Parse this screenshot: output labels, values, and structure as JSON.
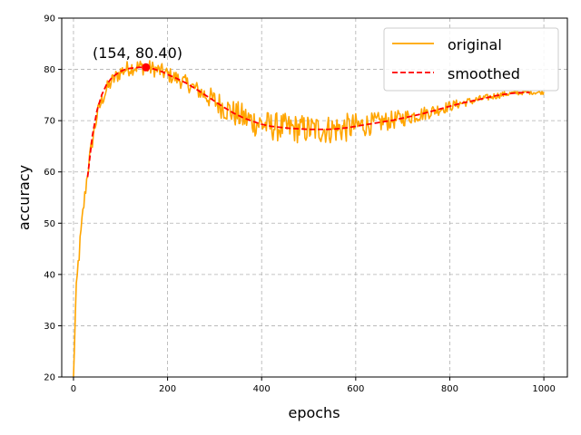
{
  "chart_data": {
    "type": "line",
    "xlabel": "epochs",
    "ylabel": "accuracy",
    "xlim": [
      -25,
      1050
    ],
    "ylim": [
      20,
      90
    ],
    "xticks": [
      0,
      200,
      400,
      600,
      800,
      1000
    ],
    "yticks": [
      20,
      30,
      40,
      50,
      60,
      70,
      80,
      90
    ],
    "grid": true,
    "legend_position": "top-right",
    "series": [
      {
        "name": "original",
        "color": "#ffa500",
        "style": "solid",
        "x": [
          0,
          5,
          10,
          20,
          30,
          40,
          50,
          60,
          70,
          80,
          90,
          100,
          110,
          120,
          130,
          140,
          150,
          160,
          170,
          180,
          190,
          200,
          220,
          240,
          260,
          280,
          300,
          320,
          340,
          360,
          380,
          400,
          420,
          440,
          460,
          480,
          500,
          520,
          540,
          560,
          580,
          600,
          620,
          640,
          660,
          680,
          700,
          720,
          740,
          760,
          780,
          800,
          820,
          840,
          860,
          880,
          900,
          920,
          940,
          960,
          980,
          1000
        ],
        "y": [
          20,
          35,
          42,
          52,
          60,
          66,
          71,
          74,
          76,
          77.5,
          78.5,
          79.5,
          80,
          80.3,
          80.5,
          80.5,
          80.4,
          80.3,
          80.1,
          79.8,
          79.5,
          79.0,
          78.2,
          77.3,
          76.2,
          75.0,
          73.8,
          72.6,
          71.5,
          70.6,
          69.9,
          69.3,
          68.9,
          68.7,
          68.5,
          68.4,
          68.3,
          68.3,
          68.3,
          68.4,
          68.6,
          68.9,
          69.2,
          69.5,
          69.8,
          70.1,
          70.5,
          70.9,
          71.3,
          71.8,
          72.3,
          72.8,
          73.3,
          73.7,
          74.1,
          74.5,
          74.9,
          75.2,
          75.4,
          75.5,
          75.5,
          75.5
        ],
        "noise": [
          0,
          1.5,
          1.5,
          1.2,
          1.2,
          1.2,
          1.2,
          1.2,
          1.2,
          1.2,
          1.2,
          1.2,
          1.2,
          1.2,
          1.2,
          1.2,
          1.2,
          1.2,
          1.2,
          1.2,
          1.2,
          1.2,
          1.2,
          1.2,
          1.2,
          1.5,
          1.8,
          2.0,
          2.0,
          2.2,
          2.2,
          2.2,
          2.2,
          2.2,
          2.2,
          2.2,
          2.2,
          2.2,
          2.2,
          2.2,
          2.2,
          2.0,
          1.8,
          1.6,
          1.5,
          1.4,
          1.3,
          1.2,
          1.1,
          1.0,
          0.9,
          0.8,
          0.7,
          0.6,
          0.6,
          0.5,
          0.5,
          0.4,
          0.4,
          0.3,
          0.3,
          0.3
        ]
      },
      {
        "name": "smoothed",
        "color": "#ff0000",
        "style": "dashed",
        "x": [
          30,
          40,
          50,
          60,
          70,
          80,
          90,
          100,
          110,
          120,
          130,
          140,
          150,
          160,
          170,
          180,
          190,
          200,
          220,
          240,
          260,
          280,
          300,
          320,
          340,
          360,
          380,
          400,
          420,
          440,
          460,
          480,
          500,
          520,
          540,
          560,
          580,
          600,
          620,
          640,
          660,
          680,
          700,
          720,
          740,
          760,
          780,
          800,
          820,
          840,
          860,
          880,
          900,
          920,
          940,
          960,
          970
        ],
        "y": [
          59,
          67,
          72,
          75,
          77,
          78.2,
          79.0,
          79.6,
          80.0,
          80.2,
          80.3,
          80.4,
          80.4,
          80.3,
          80.1,
          79.8,
          79.5,
          79.0,
          78.2,
          77.3,
          76.2,
          75.0,
          73.8,
          72.6,
          71.5,
          70.6,
          69.9,
          69.3,
          68.9,
          68.7,
          68.5,
          68.4,
          68.3,
          68.3,
          68.3,
          68.4,
          68.6,
          68.9,
          69.2,
          69.5,
          69.8,
          70.1,
          70.5,
          70.9,
          71.3,
          71.8,
          72.3,
          72.8,
          73.3,
          73.7,
          74.1,
          74.5,
          74.9,
          75.2,
          75.4,
          75.5,
          75.5
        ]
      }
    ],
    "annotation": {
      "text": "(154, 80.40)",
      "point_x": 154,
      "point_y": 80.4,
      "point_color": "#ff0000"
    },
    "legend": {
      "items": [
        {
          "label": "original",
          "color": "#ffa500",
          "style": "solid"
        },
        {
          "label": "smoothed",
          "color": "#ff0000",
          "style": "dashed"
        }
      ]
    }
  }
}
